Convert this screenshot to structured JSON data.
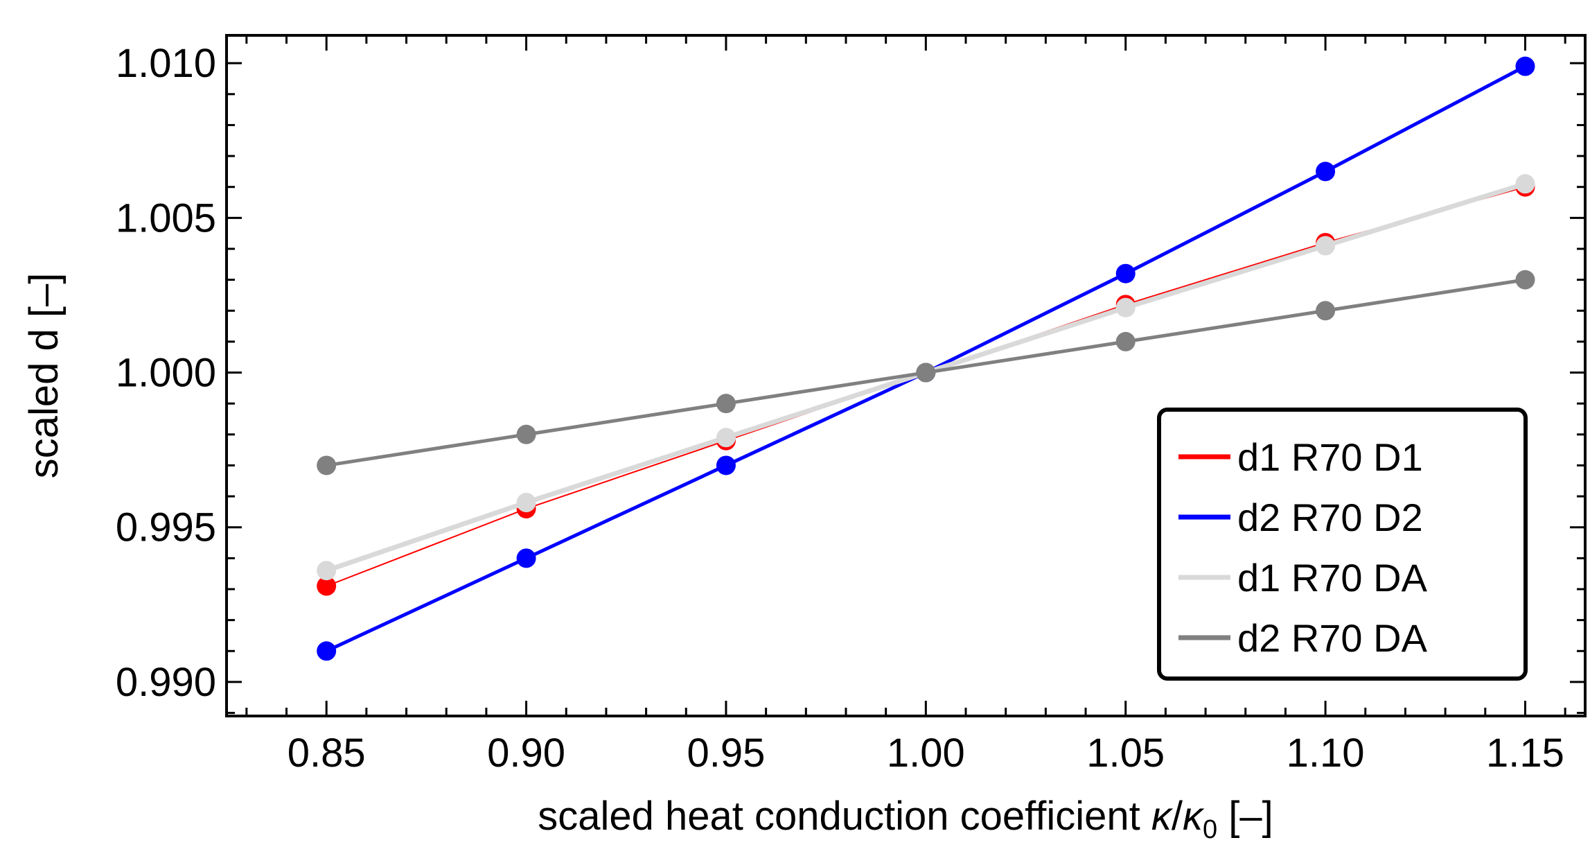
{
  "chart_data": {
    "type": "line",
    "title": "",
    "xlabel_main": "scaled heat conduction coefficient ",
    "xlabel_kappa": "κ",
    "xlabel_slash": "/",
    "xlabel_kappa0": "κ",
    "xlabel_sub": "0",
    "xlabel_units": " [–]",
    "ylabel": "scaled d [–]",
    "xlim": [
      0.825,
      1.165
    ],
    "ylim": [
      0.9889,
      1.0109
    ],
    "x": [
      0.85,
      0.9,
      0.95,
      1.0,
      1.05,
      1.1,
      1.15
    ],
    "xticks": [
      0.85,
      0.9,
      0.95,
      1.0,
      1.05,
      1.1,
      1.15
    ],
    "xtick_labels": [
      "0.85",
      "0.90",
      "0.95",
      "1.00",
      "1.05",
      "1.10",
      "1.15"
    ],
    "yticks": [
      0.99,
      0.995,
      1.0,
      1.005,
      1.01
    ],
    "ytick_labels": [
      "0.990",
      "0.995",
      "1.000",
      "1.005",
      "1.010"
    ],
    "legend_position": "center-right",
    "grid": false,
    "series": [
      {
        "name": "d1 R70 D1",
        "color": "#ff0000",
        "values": [
          0.9931,
          0.9956,
          0.9978,
          1.0,
          1.0022,
          1.0042,
          1.006
        ]
      },
      {
        "name": "d2 R70 D2",
        "color": "#0000ff",
        "values": [
          0.991,
          0.994,
          0.997,
          1.0,
          1.0032,
          1.0065,
          1.0099
        ]
      },
      {
        "name": "d1 R70 DA",
        "color": "#d9d9d9",
        "values": [
          0.9936,
          0.9958,
          0.9979,
          1.0,
          1.0021,
          1.0041,
          1.0061
        ]
      },
      {
        "name": "d2 R70 DA",
        "color": "#808080",
        "values": [
          0.997,
          0.998,
          0.999,
          1.0,
          1.001,
          1.002,
          1.003
        ]
      }
    ]
  }
}
